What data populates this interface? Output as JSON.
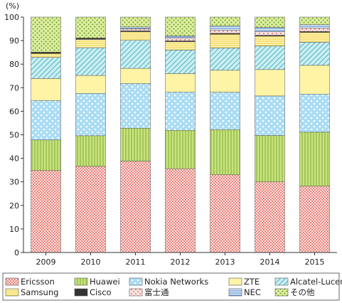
{
  "chart_data": {
    "type": "bar",
    "stacked": true,
    "unit_label": "(%)",
    "categories": [
      "2009",
      "2010",
      "2011",
      "2012",
      "2013",
      "2014",
      "2015"
    ],
    "ylim": [
      0,
      100
    ],
    "yticks": [
      "0",
      "10",
      "20",
      "30",
      "40",
      "50",
      "60",
      "70",
      "80",
      "90",
      "100"
    ],
    "grid": false,
    "legend_position": "bottom",
    "series": [
      {
        "name": "Ericsson",
        "color": "#f4a6a0",
        "pattern": "dots-red",
        "values": [
          34.8,
          36.6,
          38.8,
          35.6,
          33.0,
          30.0,
          28.2
        ]
      },
      {
        "name": "Huawei",
        "color": "#c3e27e",
        "pattern": "vlines-green",
        "values": [
          13.0,
          13.0,
          14.0,
          16.3,
          19.2,
          19.7,
          22.9
        ]
      },
      {
        "name": "Nokia Networks",
        "color": "#bfe4f6",
        "pattern": "dots-blue",
        "values": [
          16.8,
          18.0,
          19.0,
          16.3,
          15.9,
          16.8,
          16.2
        ]
      },
      {
        "name": "ZTE",
        "color": "#fff4a6",
        "pattern": "solid",
        "values": [
          9.3,
          7.6,
          6.4,
          7.8,
          9.3,
          11.2,
          12.2
        ]
      },
      {
        "name": "Alcatel-Lucent",
        "color": "#b7e5ec",
        "pattern": "diag-teal",
        "values": [
          9.0,
          11.8,
          11.9,
          10.0,
          9.5,
          10.0,
          9.8
        ]
      },
      {
        "name": "Samsung",
        "color": "#fff09a",
        "pattern": "hlines-yellow",
        "values": [
          1.6,
          3.5,
          3.7,
          3.5,
          5.8,
          4.2,
          4.2
        ]
      },
      {
        "name": "Cisco",
        "color": "#333333",
        "pattern": "solid",
        "values": [
          0.6,
          0.6,
          0.4,
          0.4,
          0.4,
          0.4,
          0.4
        ]
      },
      {
        "name": "富士通",
        "color": "#f9c9c6",
        "pattern": "hearts-red",
        "values": [
          0.0,
          0.0,
          0.8,
          1.3,
          1.3,
          1.5,
          1.4
        ]
      },
      {
        "name": "NEC",
        "color": "#c9dcf2",
        "pattern": "hlines-blue",
        "values": [
          0.0,
          0.0,
          0.8,
          0.8,
          1.8,
          1.8,
          1.5
        ]
      },
      {
        "name": "その他",
        "color": "#cfe59a",
        "pattern": "dots-green",
        "values": [
          14.9,
          8.9,
          4.2,
          8.0,
          3.8,
          4.4,
          3.2
        ]
      }
    ]
  }
}
